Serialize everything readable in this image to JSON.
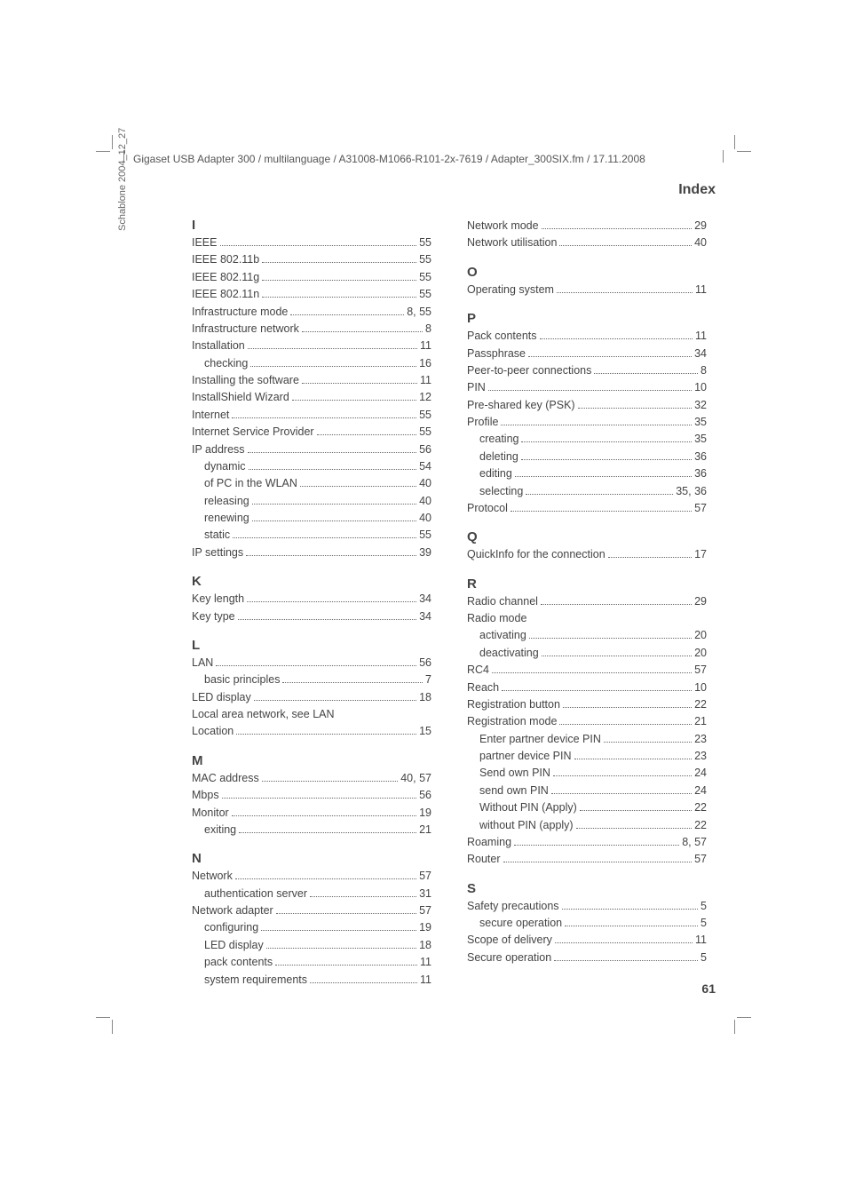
{
  "header_text": "Gigaset USB Adapter 300 / multilanguage / A31008-M1066-R101-2x-7619 / Adapter_300SIX.fm / 17.11.2008",
  "side_text": "Schablone 2004_12_27",
  "index_title": "Index",
  "page_number": "61",
  "left_column": [
    {
      "type": "letter",
      "text": "I"
    },
    {
      "type": "entry",
      "label": "IEEE",
      "page": "55"
    },
    {
      "type": "entry",
      "label": "IEEE 802.11b",
      "page": "55"
    },
    {
      "type": "entry",
      "label": "IEEE 802.11g",
      "page": "55"
    },
    {
      "type": "entry",
      "label": "IEEE 802.11n",
      "page": "55"
    },
    {
      "type": "entry",
      "label": "Infrastructure mode",
      "page": "8, 55"
    },
    {
      "type": "entry",
      "label": "Infrastructure network",
      "page": "8"
    },
    {
      "type": "entry",
      "label": "Installation",
      "page": "11"
    },
    {
      "type": "entry",
      "label": "checking",
      "page": "16",
      "indent": true
    },
    {
      "type": "entry",
      "label": "Installing the software",
      "page": "11"
    },
    {
      "type": "entry",
      "label": "InstallShield Wizard",
      "page": "12"
    },
    {
      "type": "entry",
      "label": "Internet",
      "page": "55"
    },
    {
      "type": "entry",
      "label": "Internet Service Provider",
      "page": "55"
    },
    {
      "type": "entry",
      "label": "IP address",
      "page": "56"
    },
    {
      "type": "entry",
      "label": "dynamic",
      "page": "54",
      "indent": true
    },
    {
      "type": "entry",
      "label": "of PC in the WLAN",
      "page": "40",
      "indent": true
    },
    {
      "type": "entry",
      "label": "releasing",
      "page": "40",
      "indent": true
    },
    {
      "type": "entry",
      "label": "renewing",
      "page": "40",
      "indent": true
    },
    {
      "type": "entry",
      "label": "static",
      "page": "55",
      "indent": true
    },
    {
      "type": "entry",
      "label": "IP settings",
      "page": "39"
    },
    {
      "type": "letter",
      "text": "K"
    },
    {
      "type": "entry",
      "label": "Key length",
      "page": "34"
    },
    {
      "type": "entry",
      "label": "Key type",
      "page": "34"
    },
    {
      "type": "letter",
      "text": "L"
    },
    {
      "type": "entry",
      "label": "LAN",
      "page": "56"
    },
    {
      "type": "entry",
      "label": "basic principles",
      "page": "7",
      "indent": true
    },
    {
      "type": "entry",
      "label": "LED display",
      "page": "18"
    },
    {
      "type": "entry",
      "label": "Local area network, see LAN",
      "page": "",
      "noline": true
    },
    {
      "type": "entry",
      "label": "Location",
      "page": "15"
    },
    {
      "type": "letter",
      "text": "M"
    },
    {
      "type": "entry",
      "label": "MAC address",
      "page": "40, 57"
    },
    {
      "type": "entry",
      "label": "Mbps",
      "page": "56"
    },
    {
      "type": "entry",
      "label": "Monitor",
      "page": "19"
    },
    {
      "type": "entry",
      "label": "exiting",
      "page": "21",
      "indent": true
    },
    {
      "type": "letter",
      "text": "N"
    },
    {
      "type": "entry",
      "label": "Network",
      "page": "57"
    },
    {
      "type": "entry",
      "label": "authentication server",
      "page": "31",
      "indent": true
    },
    {
      "type": "entry",
      "label": "Network adapter",
      "page": "57"
    },
    {
      "type": "entry",
      "label": "configuring",
      "page": "19",
      "indent": true
    },
    {
      "type": "entry",
      "label": "LED display",
      "page": "18",
      "indent": true
    },
    {
      "type": "entry",
      "label": "pack contents",
      "page": "11",
      "indent": true
    },
    {
      "type": "entry",
      "label": "system requirements",
      "page": "11",
      "indent": true
    }
  ],
  "right_column": [
    {
      "type": "entry",
      "label": "Network mode",
      "page": "29"
    },
    {
      "type": "entry",
      "label": "Network utilisation",
      "page": "40"
    },
    {
      "type": "letter",
      "text": "O"
    },
    {
      "type": "entry",
      "label": "Operating system",
      "page": "11"
    },
    {
      "type": "letter",
      "text": "P"
    },
    {
      "type": "entry",
      "label": "Pack contents",
      "page": "11"
    },
    {
      "type": "entry",
      "label": "Passphrase",
      "page": "34"
    },
    {
      "type": "entry",
      "label": "Peer-to-peer connections",
      "page": "8"
    },
    {
      "type": "entry",
      "label": "PIN",
      "page": "10"
    },
    {
      "type": "entry",
      "label": "Pre-shared key (PSK)",
      "page": "32"
    },
    {
      "type": "entry",
      "label": "Profile",
      "page": "35"
    },
    {
      "type": "entry",
      "label": "creating",
      "page": "35",
      "indent": true
    },
    {
      "type": "entry",
      "label": "deleting",
      "page": "36",
      "indent": true
    },
    {
      "type": "entry",
      "label": "editing",
      "page": "36",
      "indent": true
    },
    {
      "type": "entry",
      "label": "selecting",
      "page": "35, 36",
      "indent": true
    },
    {
      "type": "entry",
      "label": "Protocol",
      "page": "57"
    },
    {
      "type": "letter",
      "text": "Q"
    },
    {
      "type": "entry",
      "label": "QuickInfo for the connection",
      "page": "17"
    },
    {
      "type": "letter",
      "text": "R"
    },
    {
      "type": "entry",
      "label": "Radio channel",
      "page": "29"
    },
    {
      "type": "entry",
      "label": "Radio mode",
      "page": "",
      "noline": true
    },
    {
      "type": "entry",
      "label": "activating",
      "page": "20",
      "indent": true
    },
    {
      "type": "entry",
      "label": "deactivating",
      "page": "20",
      "indent": true
    },
    {
      "type": "entry",
      "label": "RC4",
      "page": "57"
    },
    {
      "type": "entry",
      "label": "Reach",
      "page": "10"
    },
    {
      "type": "entry",
      "label": "Registration button",
      "page": "22"
    },
    {
      "type": "entry",
      "label": "Registration mode",
      "page": "21"
    },
    {
      "type": "entry",
      "label": "Enter partner device PIN",
      "page": "23",
      "indent": true
    },
    {
      "type": "entry",
      "label": "partner device PIN",
      "page": "23",
      "indent": true
    },
    {
      "type": "entry",
      "label": "Send own PIN",
      "page": "24",
      "indent": true
    },
    {
      "type": "entry",
      "label": "send own PIN",
      "page": "24",
      "indent": true
    },
    {
      "type": "entry",
      "label": "Without PIN (Apply)",
      "page": "22",
      "indent": true
    },
    {
      "type": "entry",
      "label": "without PIN (apply)",
      "page": "22",
      "indent": true
    },
    {
      "type": "entry",
      "label": "Roaming",
      "page": "8, 57"
    },
    {
      "type": "entry",
      "label": "Router",
      "page": "57"
    },
    {
      "type": "letter",
      "text": "S"
    },
    {
      "type": "entry",
      "label": "Safety precautions",
      "page": "5"
    },
    {
      "type": "entry",
      "label": "secure operation",
      "page": "5",
      "indent": true
    },
    {
      "type": "entry",
      "label": "Scope of delivery",
      "page": "11"
    },
    {
      "type": "entry",
      "label": "Secure operation",
      "page": "5"
    }
  ]
}
